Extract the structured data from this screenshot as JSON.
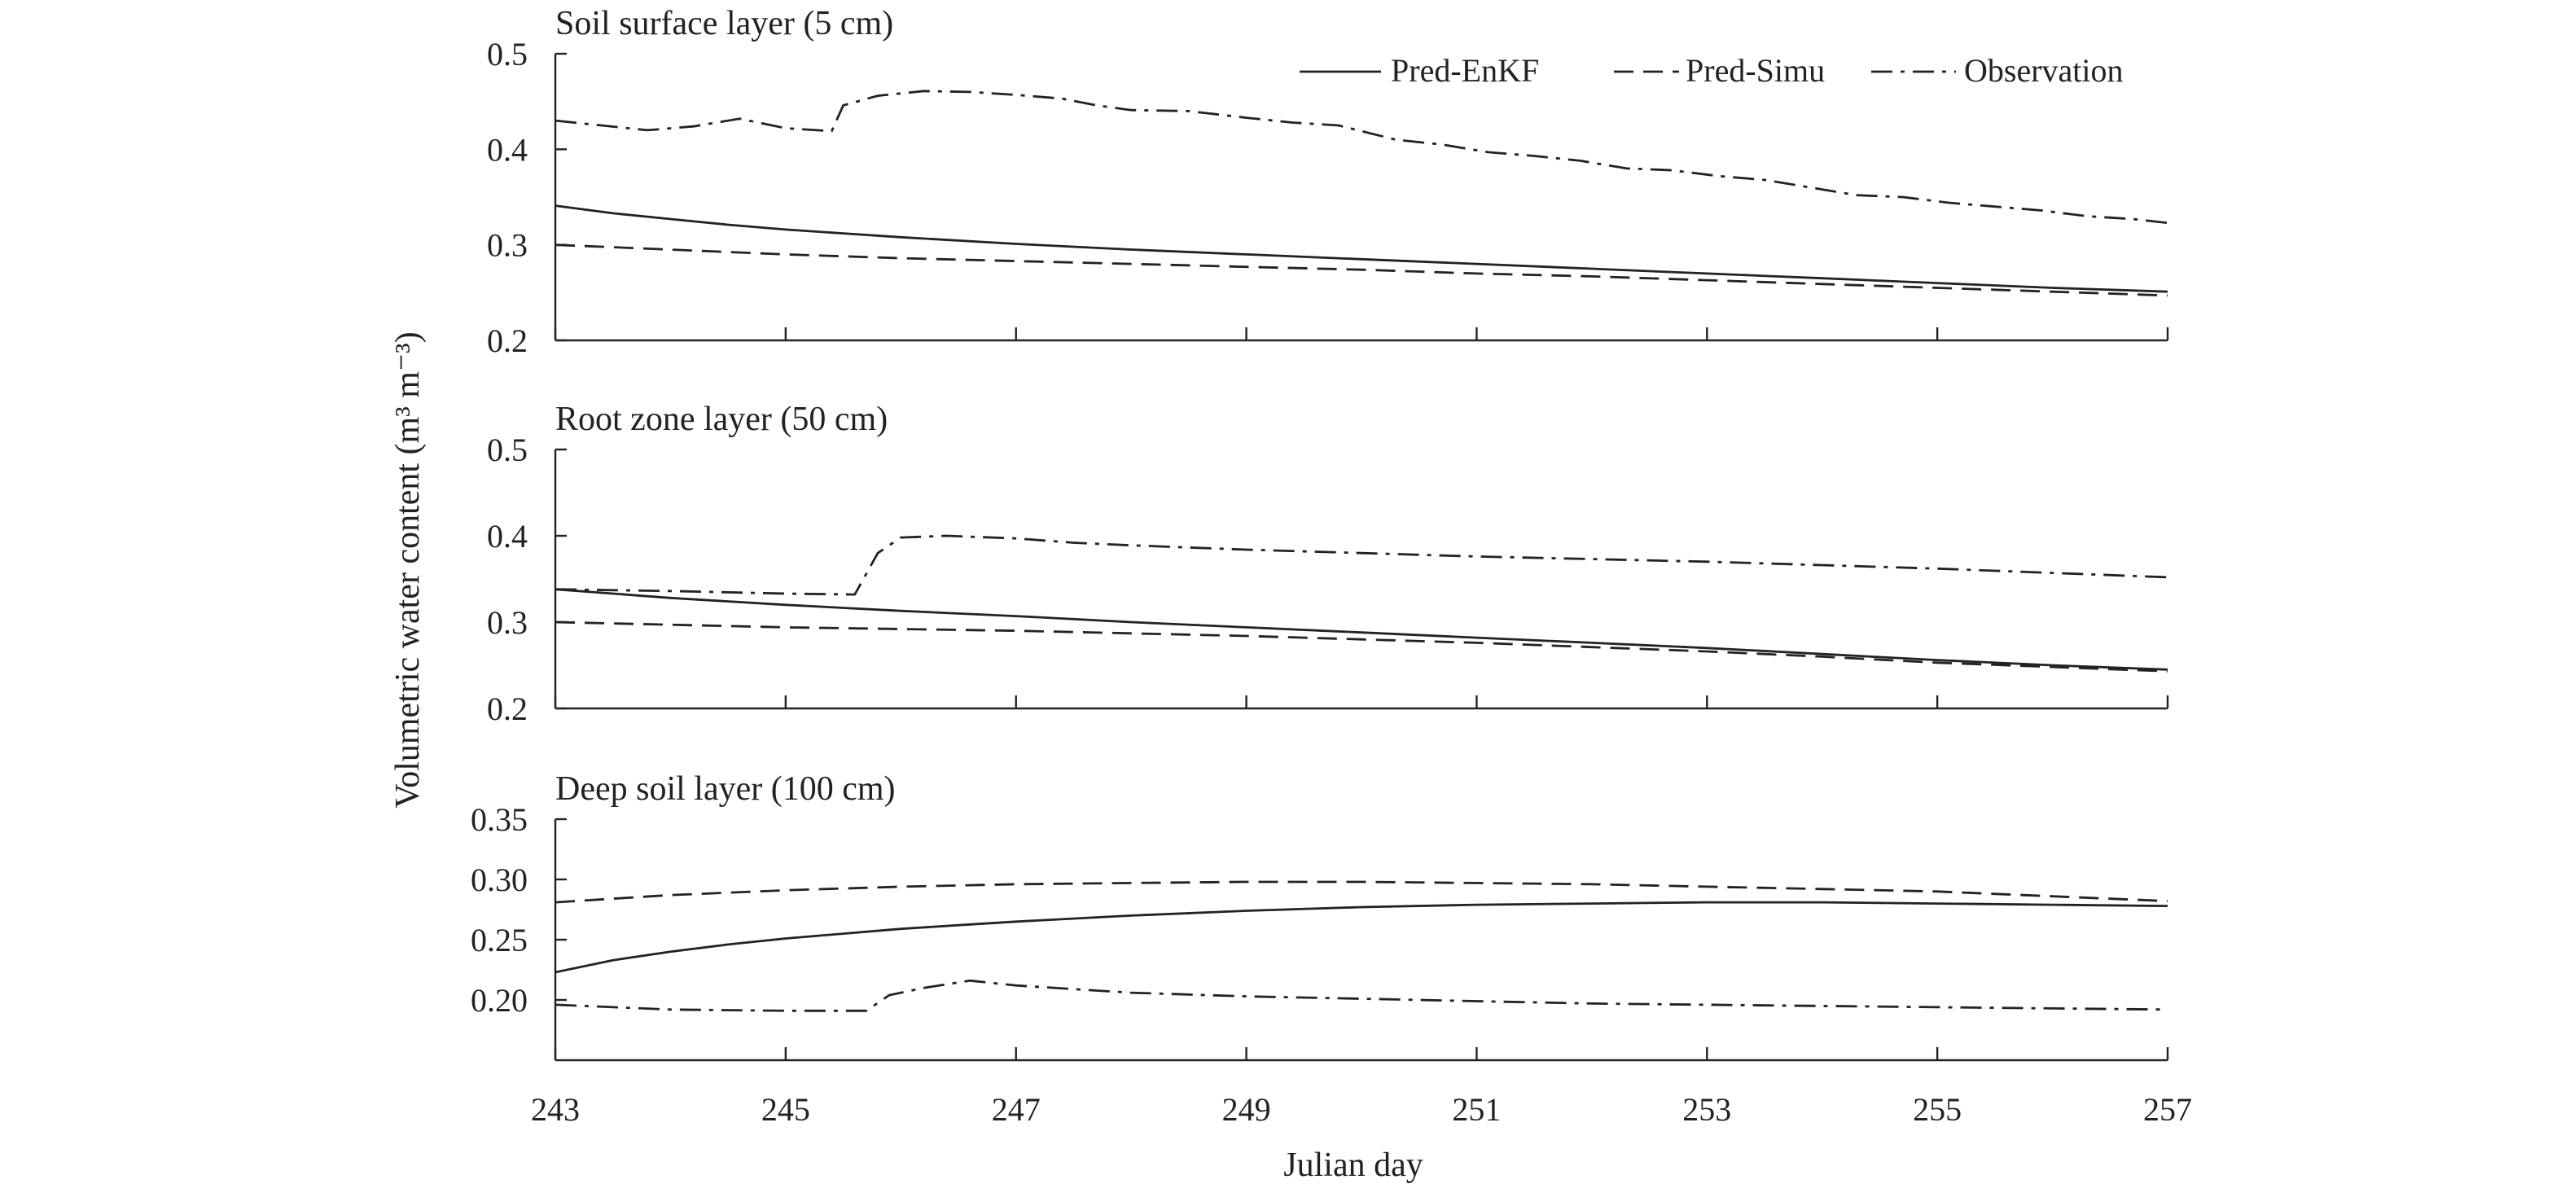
{
  "chart_data": {
    "type": "line",
    "xlabel": "Julian day",
    "ylabel": "Volumetric water content (m³ m⁻³)",
    "xlim": [
      243,
      257
    ],
    "xticks": [
      243,
      245,
      247,
      249,
      251,
      253,
      255,
      257
    ],
    "x_tick_labels": [
      "243",
      "245",
      "247",
      "249",
      "251",
      "253",
      "255",
      "257"
    ],
    "legend": {
      "placement": "top-right",
      "entries": [
        {
          "name": "Pred-EnKF",
          "dash": "solid"
        },
        {
          "name": "Pred-Simu",
          "dash": "dashed"
        },
        {
          "name": "Observation",
          "dash": "dashdot"
        }
      ]
    },
    "panels": [
      {
        "title": "Soil surface layer (5 cm)",
        "ylim": [
          0.2,
          0.5
        ],
        "yticks": [
          0.2,
          0.3,
          0.4,
          0.5
        ],
        "y_tick_labels": [
          "0.2",
          "0.3",
          "0.4",
          "0.5"
        ],
        "series": [
          {
            "name": "Pred-EnKF",
            "dash": "solid",
            "x": [
              243,
              243.5,
              244,
              244.5,
              245,
              245.5,
              246,
              247,
              248,
              249,
              250,
              251,
              252,
              253,
              254,
              255,
              256,
              257
            ],
            "y": [
              0.341,
              0.333,
              0.327,
              0.321,
              0.316,
              0.312,
              0.308,
              0.301,
              0.295,
              0.29,
              0.285,
              0.28,
              0.275,
              0.27,
              0.265,
              0.26,
              0.255,
              0.251
            ]
          },
          {
            "name": "Pred-Simu",
            "dash": "dashed",
            "x": [
              243,
              244,
              245,
              246,
              247,
              248,
              249,
              250,
              251,
              252,
              253,
              254,
              255,
              256,
              257
            ],
            "y": [
              0.3,
              0.295,
              0.29,
              0.286,
              0.283,
              0.28,
              0.277,
              0.274,
              0.27,
              0.267,
              0.263,
              0.259,
              0.255,
              0.251,
              0.247
            ]
          },
          {
            "name": "Observation",
            "dash": "dashdot",
            "x": [
              243,
              243.4,
              243.8,
              244.2,
              244.6,
              245,
              245.4,
              245.5,
              245.8,
              246.2,
              246.6,
              247,
              247.4,
              247.7,
              248,
              248.5,
              249,
              249.4,
              249.8,
              250.3,
              250.7,
              251.1,
              251.5,
              251.9,
              252.3,
              252.7,
              253.1,
              253.5,
              253.9,
              254.3,
              254.7,
              255.1,
              255.5,
              255.9,
              256.3,
              256.7,
              257
            ],
            "y": [
              0.43,
              0.425,
              0.42,
              0.424,
              0.432,
              0.422,
              0.419,
              0.446,
              0.456,
              0.461,
              0.46,
              0.457,
              0.453,
              0.446,
              0.441,
              0.44,
              0.433,
              0.428,
              0.425,
              0.41,
              0.405,
              0.397,
              0.393,
              0.388,
              0.38,
              0.378,
              0.372,
              0.368,
              0.36,
              0.352,
              0.35,
              0.344,
              0.34,
              0.336,
              0.33,
              0.327,
              0.323
            ]
          }
        ]
      },
      {
        "title": "Root zone layer (50 cm)",
        "ylim": [
          0.2,
          0.5
        ],
        "yticks": [
          0.2,
          0.3,
          0.4,
          0.5
        ],
        "y_tick_labels": [
          "0.2",
          "0.3",
          "0.4",
          "0.5"
        ],
        "series": [
          {
            "name": "Pred-EnKF",
            "dash": "solid",
            "x": [
              243,
              244,
              245,
              246,
              247,
              248,
              249,
              250,
              251,
              252,
              253,
              254,
              255,
              256,
              257
            ],
            "y": [
              0.338,
              0.328,
              0.32,
              0.313,
              0.307,
              0.3,
              0.294,
              0.288,
              0.282,
              0.276,
              0.27,
              0.263,
              0.256,
              0.25,
              0.245
            ]
          },
          {
            "name": "Pred-Simu",
            "dash": "dashed",
            "x": [
              243,
              244,
              245,
              246,
              247,
              248,
              249,
              250,
              251,
              252,
              253,
              254,
              255,
              256,
              257
            ],
            "y": [
              0.3,
              0.297,
              0.294,
              0.292,
              0.29,
              0.287,
              0.284,
              0.28,
              0.276,
              0.271,
              0.266,
              0.26,
              0.253,
              0.248,
              0.243
            ]
          },
          {
            "name": "Observation",
            "dash": "dashdot",
            "x": [
              243,
              244,
              245,
              245.6,
              245.8,
              246,
              246.4,
              247,
              247.5,
              248,
              249,
              250,
              251,
              252,
              253,
              254,
              255,
              256,
              257
            ],
            "y": [
              0.338,
              0.336,
              0.333,
              0.332,
              0.38,
              0.398,
              0.4,
              0.397,
              0.392,
              0.389,
              0.384,
              0.38,
              0.376,
              0.373,
              0.37,
              0.366,
              0.362,
              0.357,
              0.352
            ]
          }
        ]
      },
      {
        "title": "Deep soil layer (100 cm)",
        "ylim": [
          0.15,
          0.35
        ],
        "yticks": [
          0.2,
          0.25,
          0.3,
          0.35
        ],
        "y_tick_labels": [
          "0.20",
          "0.25",
          "0.30",
          "0.35"
        ],
        "series": [
          {
            "name": "Pred-EnKF",
            "dash": "solid",
            "x": [
              243,
              243.5,
              244,
              244.5,
              245,
              245.5,
              246,
              246.5,
              247,
              248,
              249,
              250,
              251,
              252,
              253,
              254,
              255,
              256,
              257
            ],
            "y": [
              0.223,
              0.233,
              0.24,
              0.246,
              0.251,
              0.255,
              0.259,
              0.262,
              0.265,
              0.27,
              0.274,
              0.277,
              0.279,
              0.28,
              0.281,
              0.281,
              0.28,
              0.279,
              0.278
            ]
          },
          {
            "name": "Pred-Simu",
            "dash": "dashed",
            "x": [
              243,
              244,
              245,
              246,
              247,
              248,
              249,
              250,
              251,
              252,
              253,
              254,
              255,
              256,
              257
            ],
            "y": [
              0.281,
              0.287,
              0.291,
              0.294,
              0.296,
              0.297,
              0.298,
              0.298,
              0.297,
              0.296,
              0.294,
              0.292,
              0.29,
              0.286,
              0.282
            ]
          },
          {
            "name": "Observation",
            "dash": "dashdot",
            "x": [
              243,
              244,
              245,
              245.7,
              245.9,
              246.2,
              246.6,
              247,
              247.5,
              248,
              249,
              250,
              251,
              252,
              253,
              254,
              255,
              256,
              257
            ],
            "y": [
              0.196,
              0.192,
              0.191,
              0.191,
              0.204,
              0.21,
              0.216,
              0.212,
              0.209,
              0.206,
              0.203,
              0.201,
              0.199,
              0.197,
              0.196,
              0.195,
              0.194,
              0.193,
              0.192
            ]
          }
        ]
      }
    ]
  }
}
